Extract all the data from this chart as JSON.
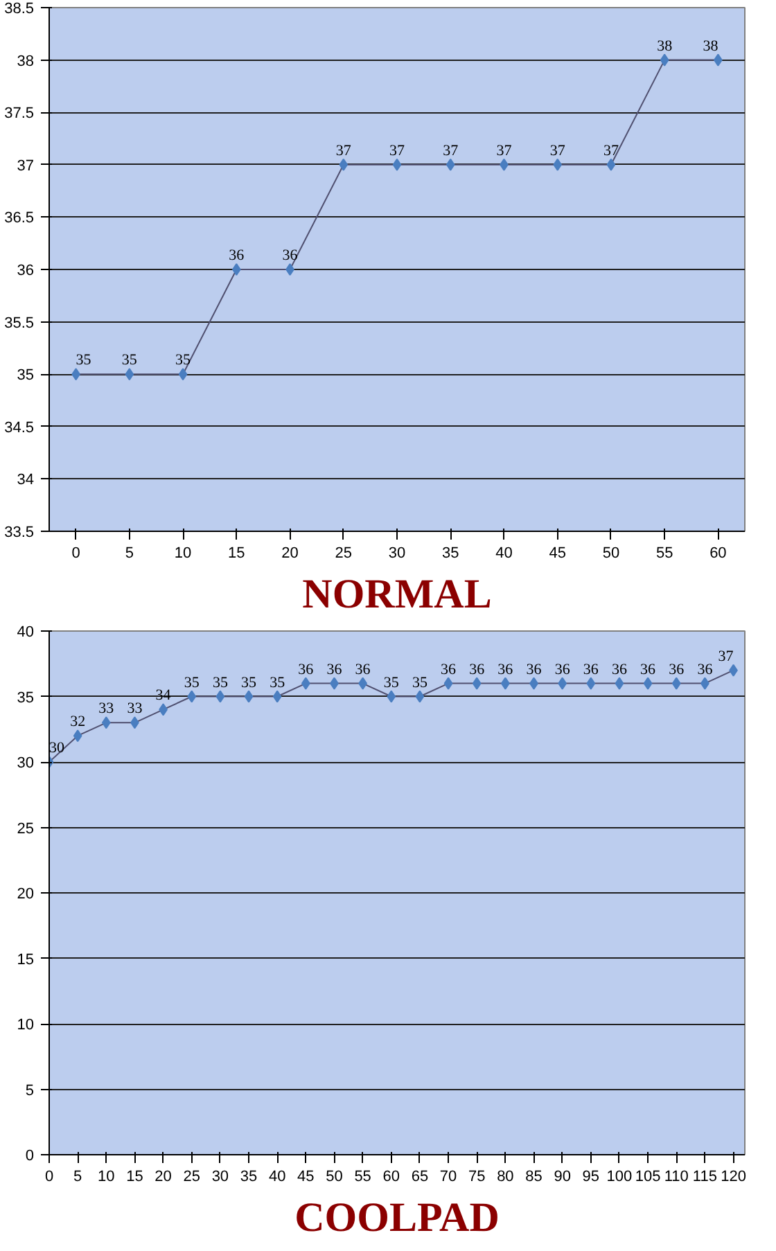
{
  "chart_data": [
    {
      "type": "line",
      "title": "NORMAL",
      "categories": [
        "0",
        "5",
        "10",
        "15",
        "20",
        "25",
        "30",
        "35",
        "40",
        "45",
        "50",
        "55",
        "60"
      ],
      "series": [
        {
          "color": "#4a7ec0",
          "values": [
            35,
            35,
            35,
            36,
            36,
            37,
            37,
            37,
            37,
            37,
            37,
            38,
            38
          ]
        }
      ],
      "ylim": [
        33.5,
        38.5
      ],
      "yticks": [
        33.5,
        34,
        34.5,
        35,
        35.5,
        36,
        36.5,
        37,
        37.5,
        38,
        38.5
      ],
      "grid": "y",
      "marker": "diamond",
      "line_style": "solid",
      "data_labels": true
    },
    {
      "type": "line",
      "title": "COOLPAD",
      "x": [
        0,
        5,
        10,
        15,
        20,
        25,
        30,
        35,
        40,
        45,
        50,
        55,
        60,
        65,
        70,
        75,
        80,
        85,
        90,
        95,
        100,
        105,
        110,
        115,
        120
      ],
      "series": [
        {
          "color": "#4a7ec0",
          "values": [
            30,
            32,
            33,
            33,
            34,
            35,
            35,
            35,
            35,
            36,
            36,
            36,
            35,
            35,
            36,
            36,
            36,
            36,
            36,
            36,
            36,
            36,
            36,
            36,
            37
          ]
        }
      ],
      "xlim": [
        0,
        122
      ],
      "xticks": [
        0,
        5,
        10,
        15,
        20,
        25,
        30,
        35,
        40,
        45,
        50,
        55,
        60,
        65,
        70,
        75,
        80,
        85,
        90,
        95,
        100,
        105,
        110,
        115,
        120
      ],
      "ylim": [
        0,
        40
      ],
      "yticks": [
        0,
        5,
        10,
        15,
        20,
        25,
        30,
        35,
        40
      ],
      "grid": "y",
      "marker": "diamond",
      "line_style": "solid",
      "data_labels": true
    }
  ]
}
